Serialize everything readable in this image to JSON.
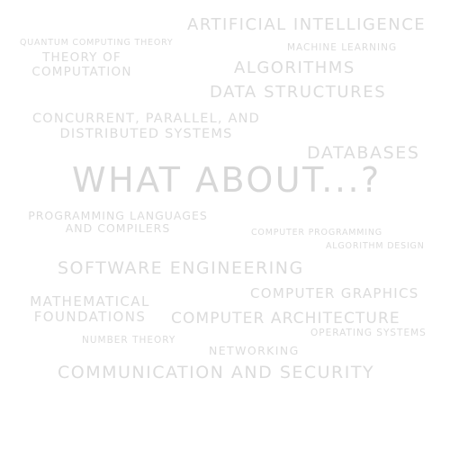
{
  "words": {
    "artificial_intelligence": "ARTIFICIAL INTELLIGENCE",
    "quantum_computing_theory": "QUANTUM COMPUTING THEORY",
    "machine_learning": "MACHINE LEARNING",
    "theory_of_computation_line1": "THEORY OF",
    "theory_of_computation_line2": "COMPUTATION",
    "algorithms": "ALGORITHMS",
    "data_structures": "DATA STRUCTURES",
    "concurrent_line1": "CONCURRENT, PARALLEL, AND",
    "concurrent_line2": "DISTRIBUTED SYSTEMS",
    "databases": "DATABASES",
    "what_about": "WHAT ABOUT...?",
    "programming_languages_line1": "PROGRAMMING LANGUAGES",
    "programming_languages_line2": "AND COMPILERS",
    "computer_programming": "COMPUTER PROGRAMMING",
    "algorithm_design": "ALGORITHM DESIGN",
    "software_engineering": "SOFTWARE ENGINEERING",
    "computer_graphics": "COMPUTER GRAPHICS",
    "mathematical_foundations_line1": "MATHEMATICAL",
    "mathematical_foundations_line2": "FOUNDATIONS",
    "computer_architecture": "COMPUTER ARCHITECTURE",
    "number_theory": "NUMBER THEORY",
    "operating_systems": "OPERATING SYSTEMS",
    "networking": "NETWORKING",
    "communication_and_security": "COMMUNICATION AND SECURITY"
  },
  "colors": {
    "background": "#ffffff",
    "text": "#dcdcdc"
  }
}
